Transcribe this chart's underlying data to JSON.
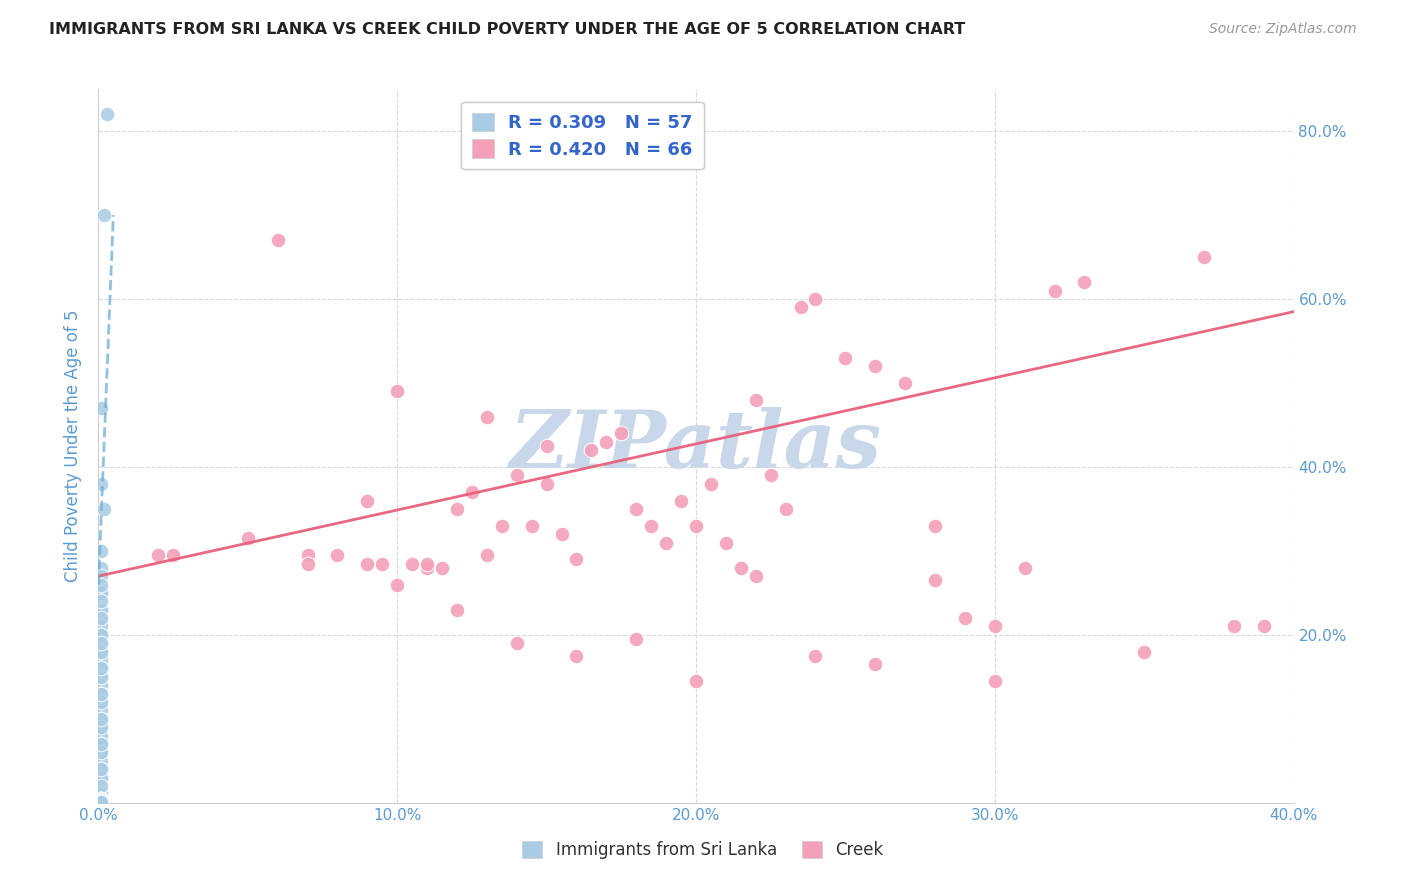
{
  "title": "IMMIGRANTS FROM SRI LANKA VS CREEK CHILD POVERTY UNDER THE AGE OF 5 CORRELATION CHART",
  "source": "Source: ZipAtlas.com",
  "ylabel": "Child Poverty Under the Age of 5",
  "xlim": [
    0.0,
    0.4
  ],
  "ylim": [
    0.0,
    0.85
  ],
  "scatter1_color": "#a8cce4",
  "scatter2_color": "#f4a0b8",
  "line1_color": "#6aaed6",
  "line2_color": "#e8607a",
  "watermark_color": "#c8d8ea",
  "background_color": "#ffffff",
  "grid_color": "#d8d8d8",
  "title_color": "#222222",
  "axis_label_color": "#5b9bd5",
  "tick_color": "#5b9bd5",
  "legend_border_color": "#cccccc",
  "legend_text_color": "#3366cc",
  "R1": 0.309,
  "N1": 57,
  "R2": 0.42,
  "N2": 66,
  "sri_lanka_x": [
    0.003,
    0.002,
    0.001,
    0.001,
    0.002,
    0.001,
    0.001,
    0.001,
    0.001,
    0.001,
    0.001,
    0.001,
    0.001,
    0.001,
    0.001,
    0.001,
    0.001,
    0.001,
    0.001,
    0.001,
    0.001,
    0.001,
    0.001,
    0.001,
    0.001,
    0.001,
    0.001,
    0.001,
    0.001,
    0.001,
    0.001,
    0.001,
    0.001,
    0.001,
    0.001,
    0.001,
    0.001,
    0.001,
    0.001,
    0.001,
    0.001,
    0.001,
    0.001,
    0.001,
    0.001,
    0.001,
    0.001,
    0.001,
    0.001,
    0.001,
    0.001,
    0.001,
    0.001,
    0.001,
    0.001,
    0.001,
    0.001
  ],
  "sri_lanka_y": [
    0.82,
    0.7,
    0.47,
    0.38,
    0.35,
    0.3,
    0.28,
    0.27,
    0.25,
    0.23,
    0.22,
    0.21,
    0.2,
    0.19,
    0.18,
    0.17,
    0.16,
    0.15,
    0.14,
    0.13,
    0.12,
    0.11,
    0.1,
    0.09,
    0.08,
    0.07,
    0.06,
    0.05,
    0.04,
    0.03,
    0.25,
    0.23,
    0.2,
    0.18,
    0.15,
    0.12,
    0.09,
    0.06,
    0.03,
    0.01,
    0.26,
    0.24,
    0.22,
    0.19,
    0.16,
    0.13,
    0.1,
    0.07,
    0.04,
    0.02,
    0.005,
    0.005,
    0.004,
    0.003,
    0.002,
    0.001,
    0.001
  ],
  "creek_x": [
    0.02,
    0.025,
    0.06,
    0.07,
    0.08,
    0.09,
    0.095,
    0.1,
    0.105,
    0.11,
    0.115,
    0.12,
    0.125,
    0.13,
    0.135,
    0.14,
    0.145,
    0.15,
    0.155,
    0.16,
    0.165,
    0.17,
    0.175,
    0.18,
    0.185,
    0.19,
    0.195,
    0.2,
    0.205,
    0.21,
    0.215,
    0.22,
    0.225,
    0.23,
    0.235,
    0.24,
    0.25,
    0.26,
    0.27,
    0.28,
    0.29,
    0.3,
    0.31,
    0.32,
    0.33,
    0.35,
    0.37,
    0.38,
    0.39,
    0.1,
    0.12,
    0.14,
    0.16,
    0.18,
    0.2,
    0.22,
    0.24,
    0.26,
    0.28,
    0.3,
    0.05,
    0.07,
    0.09,
    0.11,
    0.13,
    0.15
  ],
  "creek_y": [
    0.295,
    0.295,
    0.67,
    0.295,
    0.295,
    0.285,
    0.285,
    0.49,
    0.285,
    0.28,
    0.28,
    0.35,
    0.37,
    0.46,
    0.33,
    0.39,
    0.33,
    0.38,
    0.32,
    0.29,
    0.42,
    0.43,
    0.44,
    0.35,
    0.33,
    0.31,
    0.36,
    0.33,
    0.38,
    0.31,
    0.28,
    0.48,
    0.39,
    0.35,
    0.59,
    0.6,
    0.53,
    0.52,
    0.5,
    0.33,
    0.22,
    0.21,
    0.28,
    0.61,
    0.62,
    0.18,
    0.65,
    0.21,
    0.21,
    0.26,
    0.23,
    0.19,
    0.175,
    0.195,
    0.145,
    0.27,
    0.175,
    0.165,
    0.265,
    0.145,
    0.315,
    0.285,
    0.36,
    0.285,
    0.295,
    0.425
  ],
  "creek_line_x0": 0.0,
  "creek_line_y0": 0.27,
  "creek_line_x1": 0.4,
  "creek_line_y1": 0.585,
  "sri_line_x0": 0.0,
  "sri_line_y0": 0.26,
  "sri_line_x1": 0.005,
  "sri_line_y1": 0.7
}
